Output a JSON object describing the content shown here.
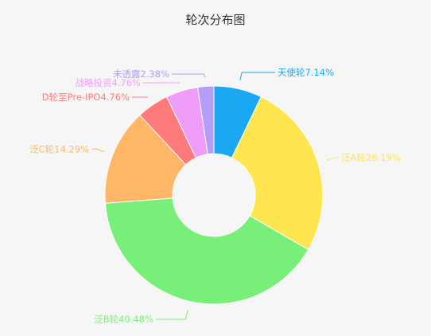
{
  "chart_data": {
    "type": "pie",
    "title": "轮次分布图",
    "donut": true,
    "start_angle_deg": 90,
    "direction": "clockwise",
    "slices": [
      {
        "label": "天使轮7.14%",
        "name": "天使轮",
        "value": 7.14,
        "color": "#1aa8f2"
      },
      {
        "label": "泛A轮26.19%",
        "name": "泛A轮",
        "value": 26.19,
        "color": "#ffe650"
      },
      {
        "label": "泛B轮40.48%",
        "name": "泛B轮",
        "value": 40.48,
        "color": "#78ef78"
      },
      {
        "label": "泛C轮14.29%",
        "name": "泛C轮",
        "value": 14.29,
        "color": "#ffb767"
      },
      {
        "label": "D轮至Pre-IPO4.76%",
        "name": "D轮至Pre-IPO",
        "value": 4.76,
        "color": "#ff7b7b"
      },
      {
        "label": "战略投资4.76%",
        "name": "战略投资",
        "value": 4.76,
        "color": "#f09dfa"
      },
      {
        "label": "未透露2.38%",
        "name": "未透露",
        "value": 2.38,
        "color": "#b59cf8"
      }
    ]
  }
}
